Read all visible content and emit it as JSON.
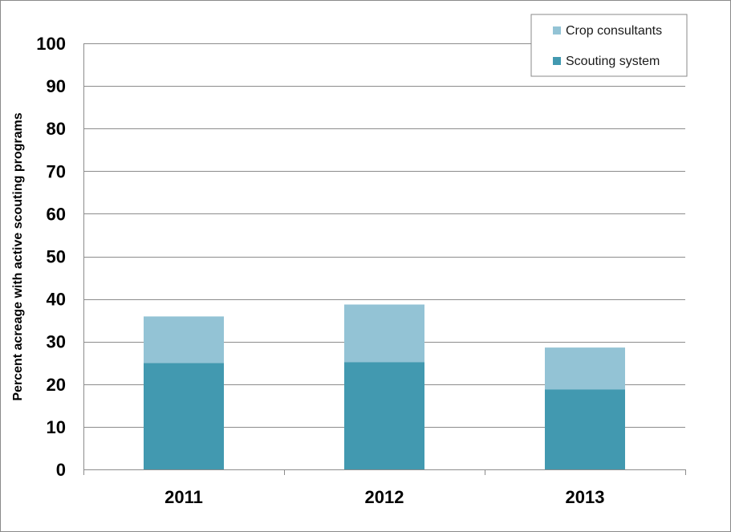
{
  "chart_data": {
    "type": "bar",
    "stacked": true,
    "categories": [
      "2011",
      "2012",
      "2013"
    ],
    "series": [
      {
        "name": "Scouting system",
        "values": [
          25,
          25.2,
          18.8
        ],
        "color": "#4299b0"
      },
      {
        "name": "Crop consultants",
        "values": [
          10.9,
          13.5,
          9.8
        ],
        "color": "#93c3d5"
      }
    ],
    "title": "",
    "xlabel": "",
    "ylabel": "Percent acreage with active scouting programs",
    "ylim": [
      0,
      100
    ],
    "yticks": [
      0,
      10,
      20,
      30,
      40,
      50,
      60,
      70,
      80,
      90,
      100
    ],
    "grid": true,
    "legend": {
      "placement": "top-right",
      "entries": [
        "Crop consultants",
        "Scouting system"
      ]
    }
  }
}
